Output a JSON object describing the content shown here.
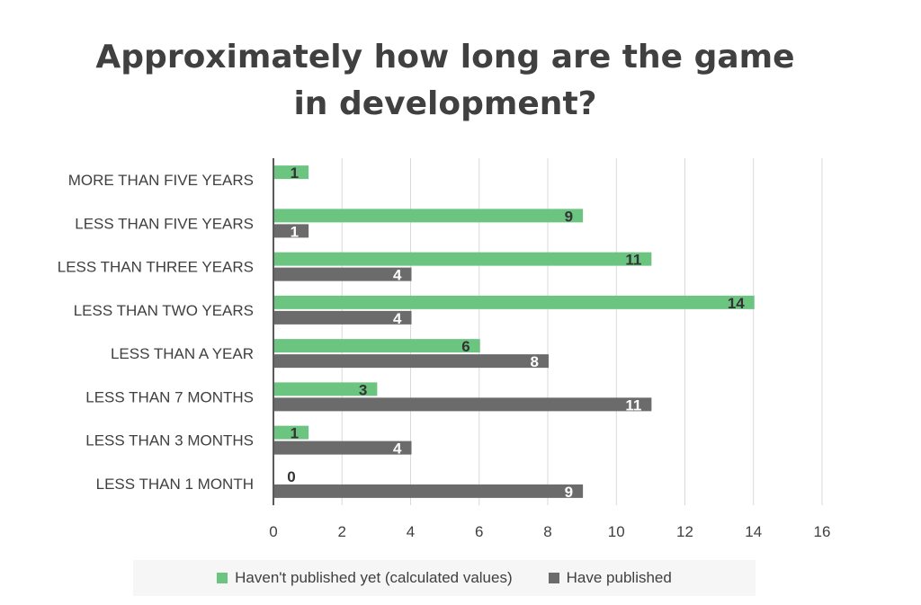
{
  "chart_data": {
    "type": "bar",
    "orientation": "horizontal",
    "title": "Approximately how long are the game in development?",
    "categories": [
      "MORE THAN FIVE YEARS",
      "LESS THAN FIVE YEARS",
      "LESS THAN THREE YEARS",
      "LESS THAN TWO YEARS",
      "LESS THAN A YEAR",
      "LESS THAN 7 MONTHS",
      "LESS THAN 3 MONTHS",
      "LESS THAN 1 MONTH"
    ],
    "series": [
      {
        "name": "Haven't published yet (calculated values)",
        "color": "#6cc481",
        "label_color": "#333333",
        "values": [
          1,
          9,
          11,
          14,
          6,
          3,
          1,
          0
        ]
      },
      {
        "name": "Have published",
        "color": "#6b6b6b",
        "label_color": "#ffffff",
        "values": [
          null,
          1,
          4,
          4,
          8,
          11,
          4,
          9
        ]
      }
    ],
    "xlim": [
      0,
      16
    ],
    "xticks": [
      0,
      2,
      4,
      6,
      8,
      10,
      12,
      14,
      16
    ],
    "grid": true,
    "legend_position": "bottom"
  }
}
